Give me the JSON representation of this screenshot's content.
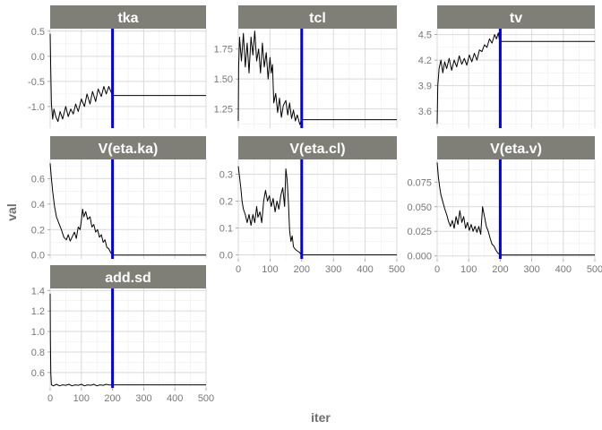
{
  "chart_data": {
    "type": "line",
    "xlabel": "iter",
    "ylabel": "val",
    "xlim": [
      0,
      500
    ],
    "x_ticks": [
      0,
      100,
      200,
      300,
      400,
      500
    ],
    "vline_x": 200,
    "grid": true,
    "colors": {
      "strip": "#7f7e77",
      "line": "#000000",
      "vline": "#0000ee",
      "grid_major": "#d9d9d9",
      "grid_minor": "#eeeeee"
    },
    "panels": [
      {
        "name": "tka",
        "ylim": [
          -1.43,
          0.55
        ],
        "y_ticks": [
          0.5,
          0.0,
          -0.5,
          -1.0
        ],
        "y_tick_labels": [
          "0.5",
          "0.0",
          "-0.5",
          "-1.0"
        ],
        "show_x_ticks": false,
        "points": [
          [
            0,
            0.45
          ],
          [
            2,
            -0.3
          ],
          [
            4,
            -0.95
          ],
          [
            8,
            -1.25
          ],
          [
            12,
            -1.05
          ],
          [
            18,
            -1.2
          ],
          [
            25,
            -1.3
          ],
          [
            32,
            -1.1
          ],
          [
            40,
            -1.25
          ],
          [
            50,
            -1.0
          ],
          [
            58,
            -1.2
          ],
          [
            66,
            -1.05
          ],
          [
            74,
            -1.15
          ],
          [
            82,
            -0.95
          ],
          [
            90,
            -1.1
          ],
          [
            100,
            -0.85
          ],
          [
            110,
            -1.0
          ],
          [
            118,
            -0.75
          ],
          [
            128,
            -0.95
          ],
          [
            136,
            -0.7
          ],
          [
            146,
            -0.9
          ],
          [
            154,
            -0.65
          ],
          [
            164,
            -0.8
          ],
          [
            172,
            -0.6
          ],
          [
            180,
            -0.75
          ],
          [
            188,
            -0.6
          ],
          [
            196,
            -0.72
          ],
          [
            200,
            -0.78
          ],
          [
            500,
            -0.78
          ]
        ]
      },
      {
        "name": "tcl",
        "ylim": [
          1.09,
          1.92
        ],
        "y_ticks": [
          1.75,
          1.5,
          1.25
        ],
        "y_tick_labels": [
          "1.75",
          "1.50",
          "1.25"
        ],
        "show_x_ticks": false,
        "points": [
          [
            0,
            1.15
          ],
          [
            1,
            1.6
          ],
          [
            4,
            1.85
          ],
          [
            10,
            1.65
          ],
          [
            16,
            1.88
          ],
          [
            22,
            1.6
          ],
          [
            28,
            1.8
          ],
          [
            34,
            1.55
          ],
          [
            40,
            1.85
          ],
          [
            46,
            1.7
          ],
          [
            52,
            1.9
          ],
          [
            58,
            1.65
          ],
          [
            64,
            1.75
          ],
          [
            70,
            1.55
          ],
          [
            76,
            1.8
          ],
          [
            82,
            1.6
          ],
          [
            88,
            1.72
          ],
          [
            94,
            1.5
          ],
          [
            100,
            1.68
          ],
          [
            104,
            1.55
          ],
          [
            108,
            1.62
          ],
          [
            112,
            1.3
          ],
          [
            118,
            1.38
          ],
          [
            124,
            1.22
          ],
          [
            130,
            1.34
          ],
          [
            136,
            1.18
          ],
          [
            142,
            1.28
          ],
          [
            150,
            1.32
          ],
          [
            156,
            1.2
          ],
          [
            162,
            1.3
          ],
          [
            168,
            1.17
          ],
          [
            174,
            1.24
          ],
          [
            180,
            1.15
          ],
          [
            186,
            1.2
          ],
          [
            194,
            1.12
          ],
          [
            200,
            1.16
          ],
          [
            500,
            1.16
          ]
        ]
      },
      {
        "name": "tv",
        "ylim": [
          3.4,
          4.57
        ],
        "y_ticks": [
          4.5,
          4.2,
          3.9,
          3.6
        ],
        "y_tick_labels": [
          "4.5",
          "4.2",
          "3.9",
          "3.6"
        ],
        "show_x_ticks": false,
        "points": [
          [
            0,
            3.45
          ],
          [
            2,
            3.9
          ],
          [
            6,
            4.1
          ],
          [
            12,
            4.2
          ],
          [
            18,
            4.05
          ],
          [
            24,
            4.18
          ],
          [
            30,
            4.1
          ],
          [
            38,
            4.22
          ],
          [
            46,
            4.08
          ],
          [
            54,
            4.2
          ],
          [
            62,
            4.12
          ],
          [
            70,
            4.25
          ],
          [
            78,
            4.15
          ],
          [
            86,
            4.22
          ],
          [
            94,
            4.14
          ],
          [
            102,
            4.26
          ],
          [
            110,
            4.18
          ],
          [
            118,
            4.28
          ],
          [
            126,
            4.2
          ],
          [
            134,
            4.32
          ],
          [
            142,
            4.3
          ],
          [
            150,
            4.38
          ],
          [
            158,
            4.35
          ],
          [
            166,
            4.45
          ],
          [
            174,
            4.4
          ],
          [
            182,
            4.5
          ],
          [
            188,
            4.45
          ],
          [
            194,
            4.52
          ],
          [
            198,
            4.42
          ],
          [
            200,
            4.42
          ],
          [
            500,
            4.42
          ]
        ]
      },
      {
        "name": "V(eta.ka)",
        "ylim": [
          -0.03,
          0.75
        ],
        "y_ticks": [
          0.6,
          0.4,
          0.2,
          0.0
        ],
        "y_tick_labels": [
          "0.6",
          "0.4",
          "0.2",
          "0.0"
        ],
        "show_x_ticks": false,
        "points": [
          [
            0,
            0.72
          ],
          [
            4,
            0.6
          ],
          [
            8,
            0.5
          ],
          [
            14,
            0.38
          ],
          [
            20,
            0.3
          ],
          [
            28,
            0.25
          ],
          [
            36,
            0.2
          ],
          [
            44,
            0.14
          ],
          [
            52,
            0.12
          ],
          [
            58,
            0.16
          ],
          [
            64,
            0.11
          ],
          [
            70,
            0.14
          ],
          [
            78,
            0.18
          ],
          [
            84,
            0.13
          ],
          [
            90,
            0.22
          ],
          [
            96,
            0.2
          ],
          [
            100,
            0.27
          ],
          [
            104,
            0.36
          ],
          [
            108,
            0.3
          ],
          [
            114,
            0.34
          ],
          [
            120,
            0.28
          ],
          [
            128,
            0.3
          ],
          [
            134,
            0.22
          ],
          [
            140,
            0.24
          ],
          [
            146,
            0.18
          ],
          [
            152,
            0.2
          ],
          [
            158,
            0.14
          ],
          [
            164,
            0.16
          ],
          [
            170,
            0.1
          ],
          [
            176,
            0.12
          ],
          [
            182,
            0.06
          ],
          [
            188,
            0.05
          ],
          [
            194,
            0.02
          ],
          [
            200,
            0.0
          ],
          [
            500,
            0.0
          ]
        ]
      },
      {
        "name": "V(eta.cl)",
        "ylim": [
          -0.015,
          0.355
        ],
        "y_ticks": [
          0.3,
          0.2,
          0.1,
          0.0
        ],
        "y_tick_labels": [
          "0.3",
          "0.2",
          "0.1",
          "0.0"
        ],
        "show_x_ticks": true,
        "points": [
          [
            0,
            0.33
          ],
          [
            4,
            0.29
          ],
          [
            8,
            0.25
          ],
          [
            12,
            0.2
          ],
          [
            16,
            0.17
          ],
          [
            22,
            0.15
          ],
          [
            28,
            0.12
          ],
          [
            34,
            0.15
          ],
          [
            40,
            0.11
          ],
          [
            46,
            0.15
          ],
          [
            52,
            0.12
          ],
          [
            58,
            0.18
          ],
          [
            62,
            0.14
          ],
          [
            68,
            0.16
          ],
          [
            74,
            0.12
          ],
          [
            80,
            0.2
          ],
          [
            86,
            0.24
          ],
          [
            92,
            0.2
          ],
          [
            98,
            0.22
          ],
          [
            104,
            0.18
          ],
          [
            110,
            0.21
          ],
          [
            116,
            0.16
          ],
          [
            122,
            0.2
          ],
          [
            128,
            0.17
          ],
          [
            134,
            0.22
          ],
          [
            140,
            0.25
          ],
          [
            146,
            0.18
          ],
          [
            150,
            0.32
          ],
          [
            154,
            0.28
          ],
          [
            158,
            0.2
          ],
          [
            162,
            0.09
          ],
          [
            166,
            0.05
          ],
          [
            170,
            0.07
          ],
          [
            174,
            0.03
          ],
          [
            180,
            0.02
          ],
          [
            186,
            0.015
          ],
          [
            192,
            0.01
          ],
          [
            200,
            0.0
          ],
          [
            500,
            0.0
          ]
        ]
      },
      {
        "name": "V(eta.v)",
        "ylim": [
          -0.003,
          0.098
        ],
        "y_ticks": [
          0.075,
          0.05,
          0.025,
          0.0
        ],
        "y_tick_labels": [
          "0.075",
          "0.050",
          "0.025",
          "0.000"
        ],
        "show_x_ticks": true,
        "points": [
          [
            0,
            0.095
          ],
          [
            4,
            0.08
          ],
          [
            8,
            0.07
          ],
          [
            12,
            0.062
          ],
          [
            18,
            0.055
          ],
          [
            24,
            0.048
          ],
          [
            30,
            0.042
          ],
          [
            36,
            0.035
          ],
          [
            42,
            0.03
          ],
          [
            48,
            0.036
          ],
          [
            54,
            0.028
          ],
          [
            60,
            0.04
          ],
          [
            66,
            0.032
          ],
          [
            72,
            0.046
          ],
          [
            78,
            0.034
          ],
          [
            84,
            0.04
          ],
          [
            90,
            0.028
          ],
          [
            96,
            0.034
          ],
          [
            102,
            0.026
          ],
          [
            108,
            0.032
          ],
          [
            114,
            0.025
          ],
          [
            120,
            0.03
          ],
          [
            126,
            0.024
          ],
          [
            132,
            0.03
          ],
          [
            138,
            0.022
          ],
          [
            144,
            0.05
          ],
          [
            150,
            0.04
          ],
          [
            156,
            0.03
          ],
          [
            162,
            0.025
          ],
          [
            168,
            0.018
          ],
          [
            174,
            0.012
          ],
          [
            180,
            0.01
          ],
          [
            186,
            0.006
          ],
          [
            192,
            0.003
          ],
          [
            200,
            0.001
          ],
          [
            500,
            0.001
          ]
        ]
      },
      {
        "name": "add.sd",
        "ylim": [
          0.45,
          1.42
        ],
        "y_ticks": [
          1.4,
          1.2,
          1.0,
          0.8,
          0.6
        ],
        "y_tick_labels": [
          "1.4",
          "1.2",
          "1.0",
          "0.8",
          "0.6"
        ],
        "show_x_ticks": true,
        "points": [
          [
            0,
            1.37
          ],
          [
            1,
            0.9
          ],
          [
            2,
            0.6
          ],
          [
            4,
            0.48
          ],
          [
            10,
            0.47
          ],
          [
            20,
            0.485
          ],
          [
            30,
            0.47
          ],
          [
            40,
            0.48
          ],
          [
            50,
            0.475
          ],
          [
            60,
            0.485
          ],
          [
            70,
            0.47
          ],
          [
            80,
            0.48
          ],
          [
            90,
            0.475
          ],
          [
            100,
            0.485
          ],
          [
            110,
            0.47
          ],
          [
            120,
            0.48
          ],
          [
            130,
            0.475
          ],
          [
            140,
            0.485
          ],
          [
            150,
            0.47
          ],
          [
            160,
            0.48
          ],
          [
            170,
            0.475
          ],
          [
            180,
            0.485
          ],
          [
            190,
            0.478
          ],
          [
            200,
            0.48
          ],
          [
            500,
            0.48
          ]
        ]
      }
    ]
  }
}
